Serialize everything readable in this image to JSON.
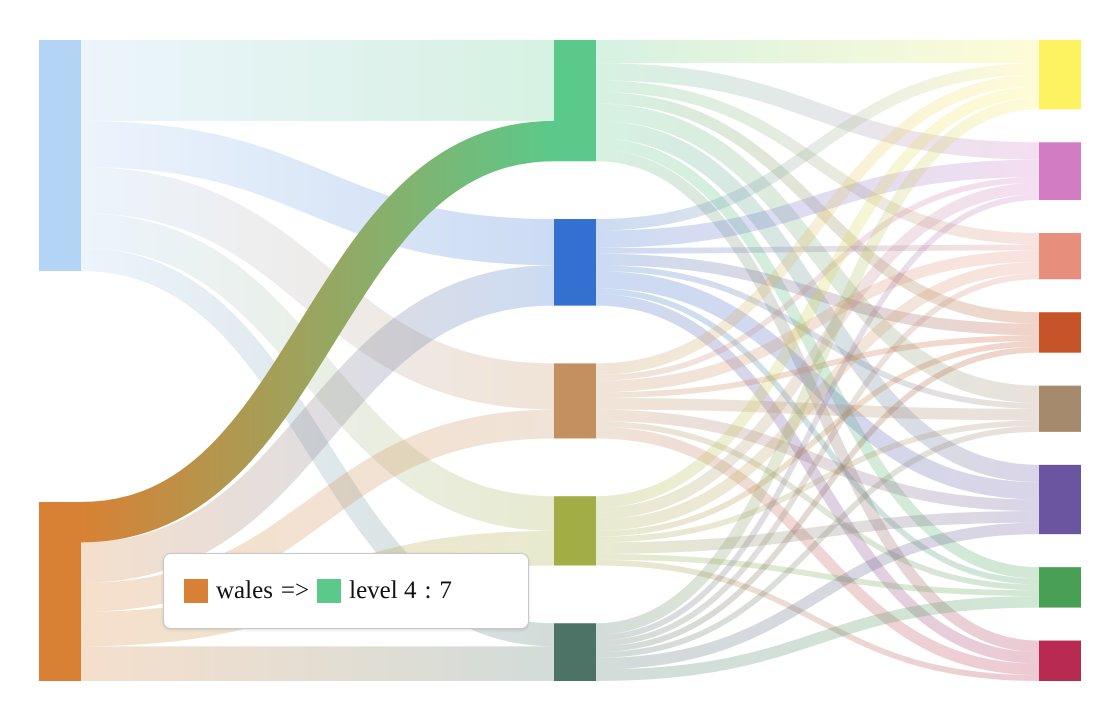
{
  "chart_data": {
    "type": "sankey",
    "columns": [
      [
        {
          "color": "#b3d4f5"
        },
        {
          "color": "#d88134"
        }
      ],
      [
        {
          "color": "#5bc98a"
        },
        {
          "color": "#3370d0"
        },
        {
          "color": "#c49060"
        },
        {
          "color": "#a3ad45"
        },
        {
          "color": "#4d7366"
        }
      ],
      [
        {
          "color": "#fdf25f"
        },
        {
          "color": "#d27cc4"
        },
        {
          "color": "#e88e7c"
        },
        {
          "color": "#c75428"
        },
        {
          "color": "#a58a6d"
        },
        {
          "color": "#6a55a0"
        },
        {
          "color": "#49a055"
        },
        {
          "color": "#b82a50"
        }
      ]
    ],
    "links": [
      {
        "from": [
          0,
          0
        ],
        "to": [
          1,
          0
        ],
        "value": 14
      },
      {
        "from": [
          0,
          0
        ],
        "to": [
          1,
          1
        ],
        "value": 8
      },
      {
        "from": [
          0,
          0
        ],
        "to": [
          1,
          2
        ],
        "value": 8
      },
      {
        "from": [
          0,
          0
        ],
        "to": [
          1,
          3
        ],
        "value": 6
      },
      {
        "from": [
          0,
          0
        ],
        "to": [
          1,
          4
        ],
        "value": 4
      },
      {
        "from": [
          0,
          1
        ],
        "to": [
          1,
          0
        ],
        "value": 7
      },
      {
        "from": [
          0,
          1
        ],
        "to": [
          1,
          1
        ],
        "value": 7
      },
      {
        "from": [
          0,
          1
        ],
        "to": [
          1,
          2
        ],
        "value": 5
      },
      {
        "from": [
          0,
          1
        ],
        "to": [
          1,
          3
        ],
        "value": 6
      },
      {
        "from": [
          0,
          1
        ],
        "to": [
          1,
          4
        ],
        "value": 6
      },
      {
        "from": [
          1,
          0
        ],
        "to": [
          2,
          0
        ],
        "value": 4
      },
      {
        "from": [
          1,
          0
        ],
        "to": [
          2,
          1
        ],
        "value": 3
      },
      {
        "from": [
          1,
          0
        ],
        "to": [
          2,
          2
        ],
        "value": 2
      },
      {
        "from": [
          1,
          0
        ],
        "to": [
          2,
          3
        ],
        "value": 2
      },
      {
        "from": [
          1,
          0
        ],
        "to": [
          2,
          4
        ],
        "value": 3
      },
      {
        "from": [
          1,
          0
        ],
        "to": [
          2,
          5
        ],
        "value": 3
      },
      {
        "from": [
          1,
          0
        ],
        "to": [
          2,
          6
        ],
        "value": 2
      },
      {
        "from": [
          1,
          0
        ],
        "to": [
          2,
          7
        ],
        "value": 2
      },
      {
        "from": [
          1,
          1
        ],
        "to": [
          2,
          0
        ],
        "value": 2
      },
      {
        "from": [
          1,
          1
        ],
        "to": [
          2,
          1
        ],
        "value": 3
      },
      {
        "from": [
          1,
          1
        ],
        "to": [
          2,
          2
        ],
        "value": 1
      },
      {
        "from": [
          1,
          1
        ],
        "to": [
          2,
          3
        ],
        "value": 2
      },
      {
        "from": [
          1,
          1
        ],
        "to": [
          2,
          4
        ],
        "value": 1
      },
      {
        "from": [
          1,
          1
        ],
        "to": [
          2,
          5
        ],
        "value": 3
      },
      {
        "from": [
          1,
          1
        ],
        "to": [
          2,
          6
        ],
        "value": 1
      },
      {
        "from": [
          1,
          1
        ],
        "to": [
          2,
          7
        ],
        "value": 2
      },
      {
        "from": [
          1,
          2
        ],
        "to": [
          2,
          0
        ],
        "value": 2
      },
      {
        "from": [
          1,
          2
        ],
        "to": [
          2,
          1
        ],
        "value": 1
      },
      {
        "from": [
          1,
          2
        ],
        "to": [
          2,
          2
        ],
        "value": 2
      },
      {
        "from": [
          1,
          2
        ],
        "to": [
          2,
          3
        ],
        "value": 1
      },
      {
        "from": [
          1,
          2
        ],
        "to": [
          2,
          4
        ],
        "value": 2
      },
      {
        "from": [
          1,
          2
        ],
        "to": [
          2,
          5
        ],
        "value": 2
      },
      {
        "from": [
          1,
          2
        ],
        "to": [
          2,
          6
        ],
        "value": 1
      },
      {
        "from": [
          1,
          2
        ],
        "to": [
          2,
          7
        ],
        "value": 2
      },
      {
        "from": [
          1,
          3
        ],
        "to": [
          2,
          0
        ],
        "value": 2
      },
      {
        "from": [
          1,
          3
        ],
        "to": [
          2,
          1
        ],
        "value": 2
      },
      {
        "from": [
          1,
          3
        ],
        "to": [
          2,
          2
        ],
        "value": 2
      },
      {
        "from": [
          1,
          3
        ],
        "to": [
          2,
          3
        ],
        "value": 1
      },
      {
        "from": [
          1,
          3
        ],
        "to": [
          2,
          4
        ],
        "value": 1
      },
      {
        "from": [
          1,
          3
        ],
        "to": [
          2,
          5
        ],
        "value": 2
      },
      {
        "from": [
          1,
          3
        ],
        "to": [
          2,
          6
        ],
        "value": 1
      },
      {
        "from": [
          1,
          3
        ],
        "to": [
          2,
          7
        ],
        "value": 1
      },
      {
        "from": [
          1,
          4
        ],
        "to": [
          2,
          0
        ],
        "value": 2
      },
      {
        "from": [
          1,
          4
        ],
        "to": [
          2,
          1
        ],
        "value": 1
      },
      {
        "from": [
          1,
          4
        ],
        "to": [
          2,
          2
        ],
        "value": 1
      },
      {
        "from": [
          1,
          4
        ],
        "to": [
          2,
          3
        ],
        "value": 1
      },
      {
        "from": [
          1,
          4
        ],
        "to": [
          2,
          4
        ],
        "value": 1
      },
      {
        "from": [
          1,
          4
        ],
        "to": [
          2,
          5
        ],
        "value": 2
      },
      {
        "from": [
          1,
          4
        ],
        "to": [
          2,
          6
        ],
        "value": 2
      }
    ],
    "highlighted_link": 5,
    "tooltip": {
      "source": "wales",
      "arrow": "=>",
      "target": "level 4",
      "separator": ":",
      "value": 7
    }
  }
}
